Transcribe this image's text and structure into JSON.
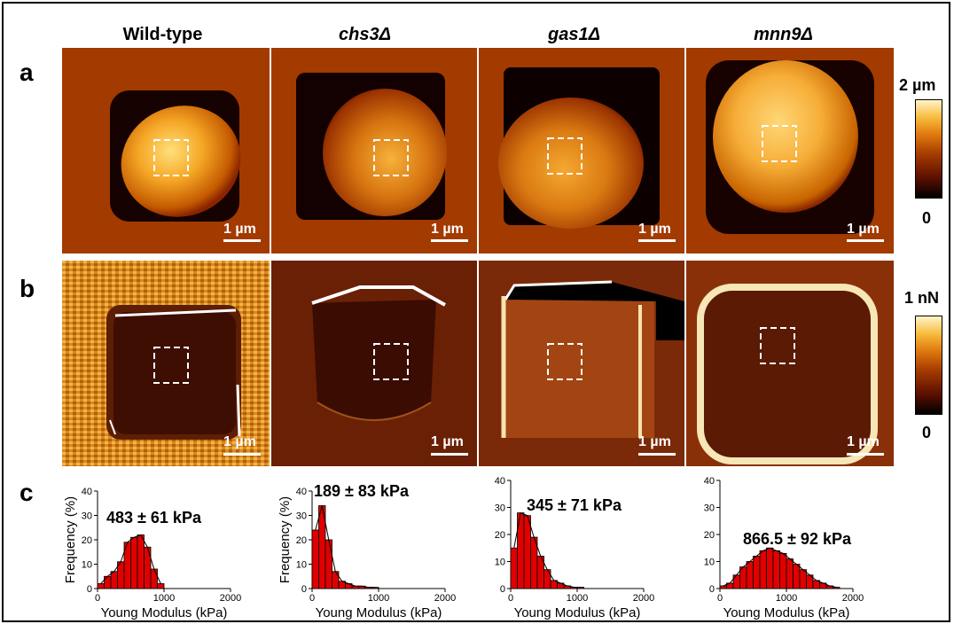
{
  "columns": [
    {
      "label": "Wild-type",
      "italic": false
    },
    {
      "label": "chs3Δ",
      "italic": true
    },
    {
      "label": "gas1Δ",
      "italic": true
    },
    {
      "label": "mnn9Δ",
      "italic": true
    }
  ],
  "row_labels": {
    "a": "a",
    "b": "b",
    "c": "c"
  },
  "scale_bar_label": "1 µm",
  "colorbar_a": {
    "max": "2 µm",
    "min": "0"
  },
  "colorbar_b": {
    "max": "1 nN",
    "min": "0"
  },
  "colors": {
    "red_bar": "#e00000",
    "bar_edge": "#000000",
    "dashed_box": "#ffffff"
  },
  "chart_data": [
    {
      "type": "bar",
      "title": "483 ± 61 kPa",
      "xlabel": "Young Modulus (kPa)",
      "ylabel": "Frequency (%)",
      "xlim": [
        0,
        2000
      ],
      "ylim": [
        0,
        40
      ],
      "xticks": [
        "0",
        "1000",
        "2000"
      ],
      "yticks": [
        "0",
        "10",
        "20",
        "30",
        "40"
      ],
      "bin_width": 100,
      "x": [
        50,
        150,
        250,
        350,
        450,
        550,
        650,
        750,
        850,
        950
      ],
      "values": [
        2,
        5,
        7,
        11,
        19,
        21,
        22,
        17,
        8,
        2
      ]
    },
    {
      "type": "bar",
      "title": "189 ± 83 kPa",
      "xlabel": "Young Modulus (kPa)",
      "ylabel": "Frequency (%)",
      "xlim": [
        0,
        2000
      ],
      "ylim": [
        0,
        40
      ],
      "xticks": [
        "0",
        "1000",
        "2000"
      ],
      "yticks": [
        "0",
        "10",
        "20",
        "30",
        "40"
      ],
      "bin_width": 100,
      "x": [
        50,
        150,
        250,
        350,
        450,
        550,
        650,
        750,
        850,
        950
      ],
      "values": [
        24,
        34,
        20,
        7,
        3,
        2,
        1,
        1,
        0.5,
        0.5
      ]
    },
    {
      "type": "bar",
      "title": "345 ± 71 kPa",
      "xlabel": "Young Modulus (kPa)",
      "ylabel": "",
      "xlim": [
        0,
        2000
      ],
      "ylim": [
        0,
        40
      ],
      "xticks": [
        "0",
        "1000",
        "2000"
      ],
      "yticks": [
        "0",
        "10",
        "20",
        "30",
        "40"
      ],
      "bin_width": 100,
      "x": [
        50,
        150,
        250,
        350,
        450,
        550,
        650,
        750,
        850,
        950,
        1050
      ],
      "values": [
        15,
        28,
        27,
        19,
        12,
        7,
        3,
        2,
        1,
        0.5,
        0.5
      ]
    },
    {
      "type": "bar",
      "title": "866.5 ± 92 kPa",
      "xlabel": "Young Modulus (kPa)",
      "ylabel": "",
      "xlim": [
        0,
        2000
      ],
      "ylim": [
        0,
        40
      ],
      "xticks": [
        "0",
        "1000",
        "2000"
      ],
      "yticks": [
        "0",
        "10",
        "20",
        "30",
        "40"
      ],
      "bin_width": 100,
      "x": [
        50,
        150,
        250,
        350,
        450,
        550,
        650,
        750,
        850,
        950,
        1050,
        1150,
        1250,
        1350,
        1450,
        1550,
        1650,
        1750
      ],
      "values": [
        1,
        2,
        5,
        8,
        10,
        12,
        14,
        15,
        14,
        13,
        11,
        9,
        7,
        5,
        3,
        2,
        1,
        0.5
      ]
    }
  ]
}
